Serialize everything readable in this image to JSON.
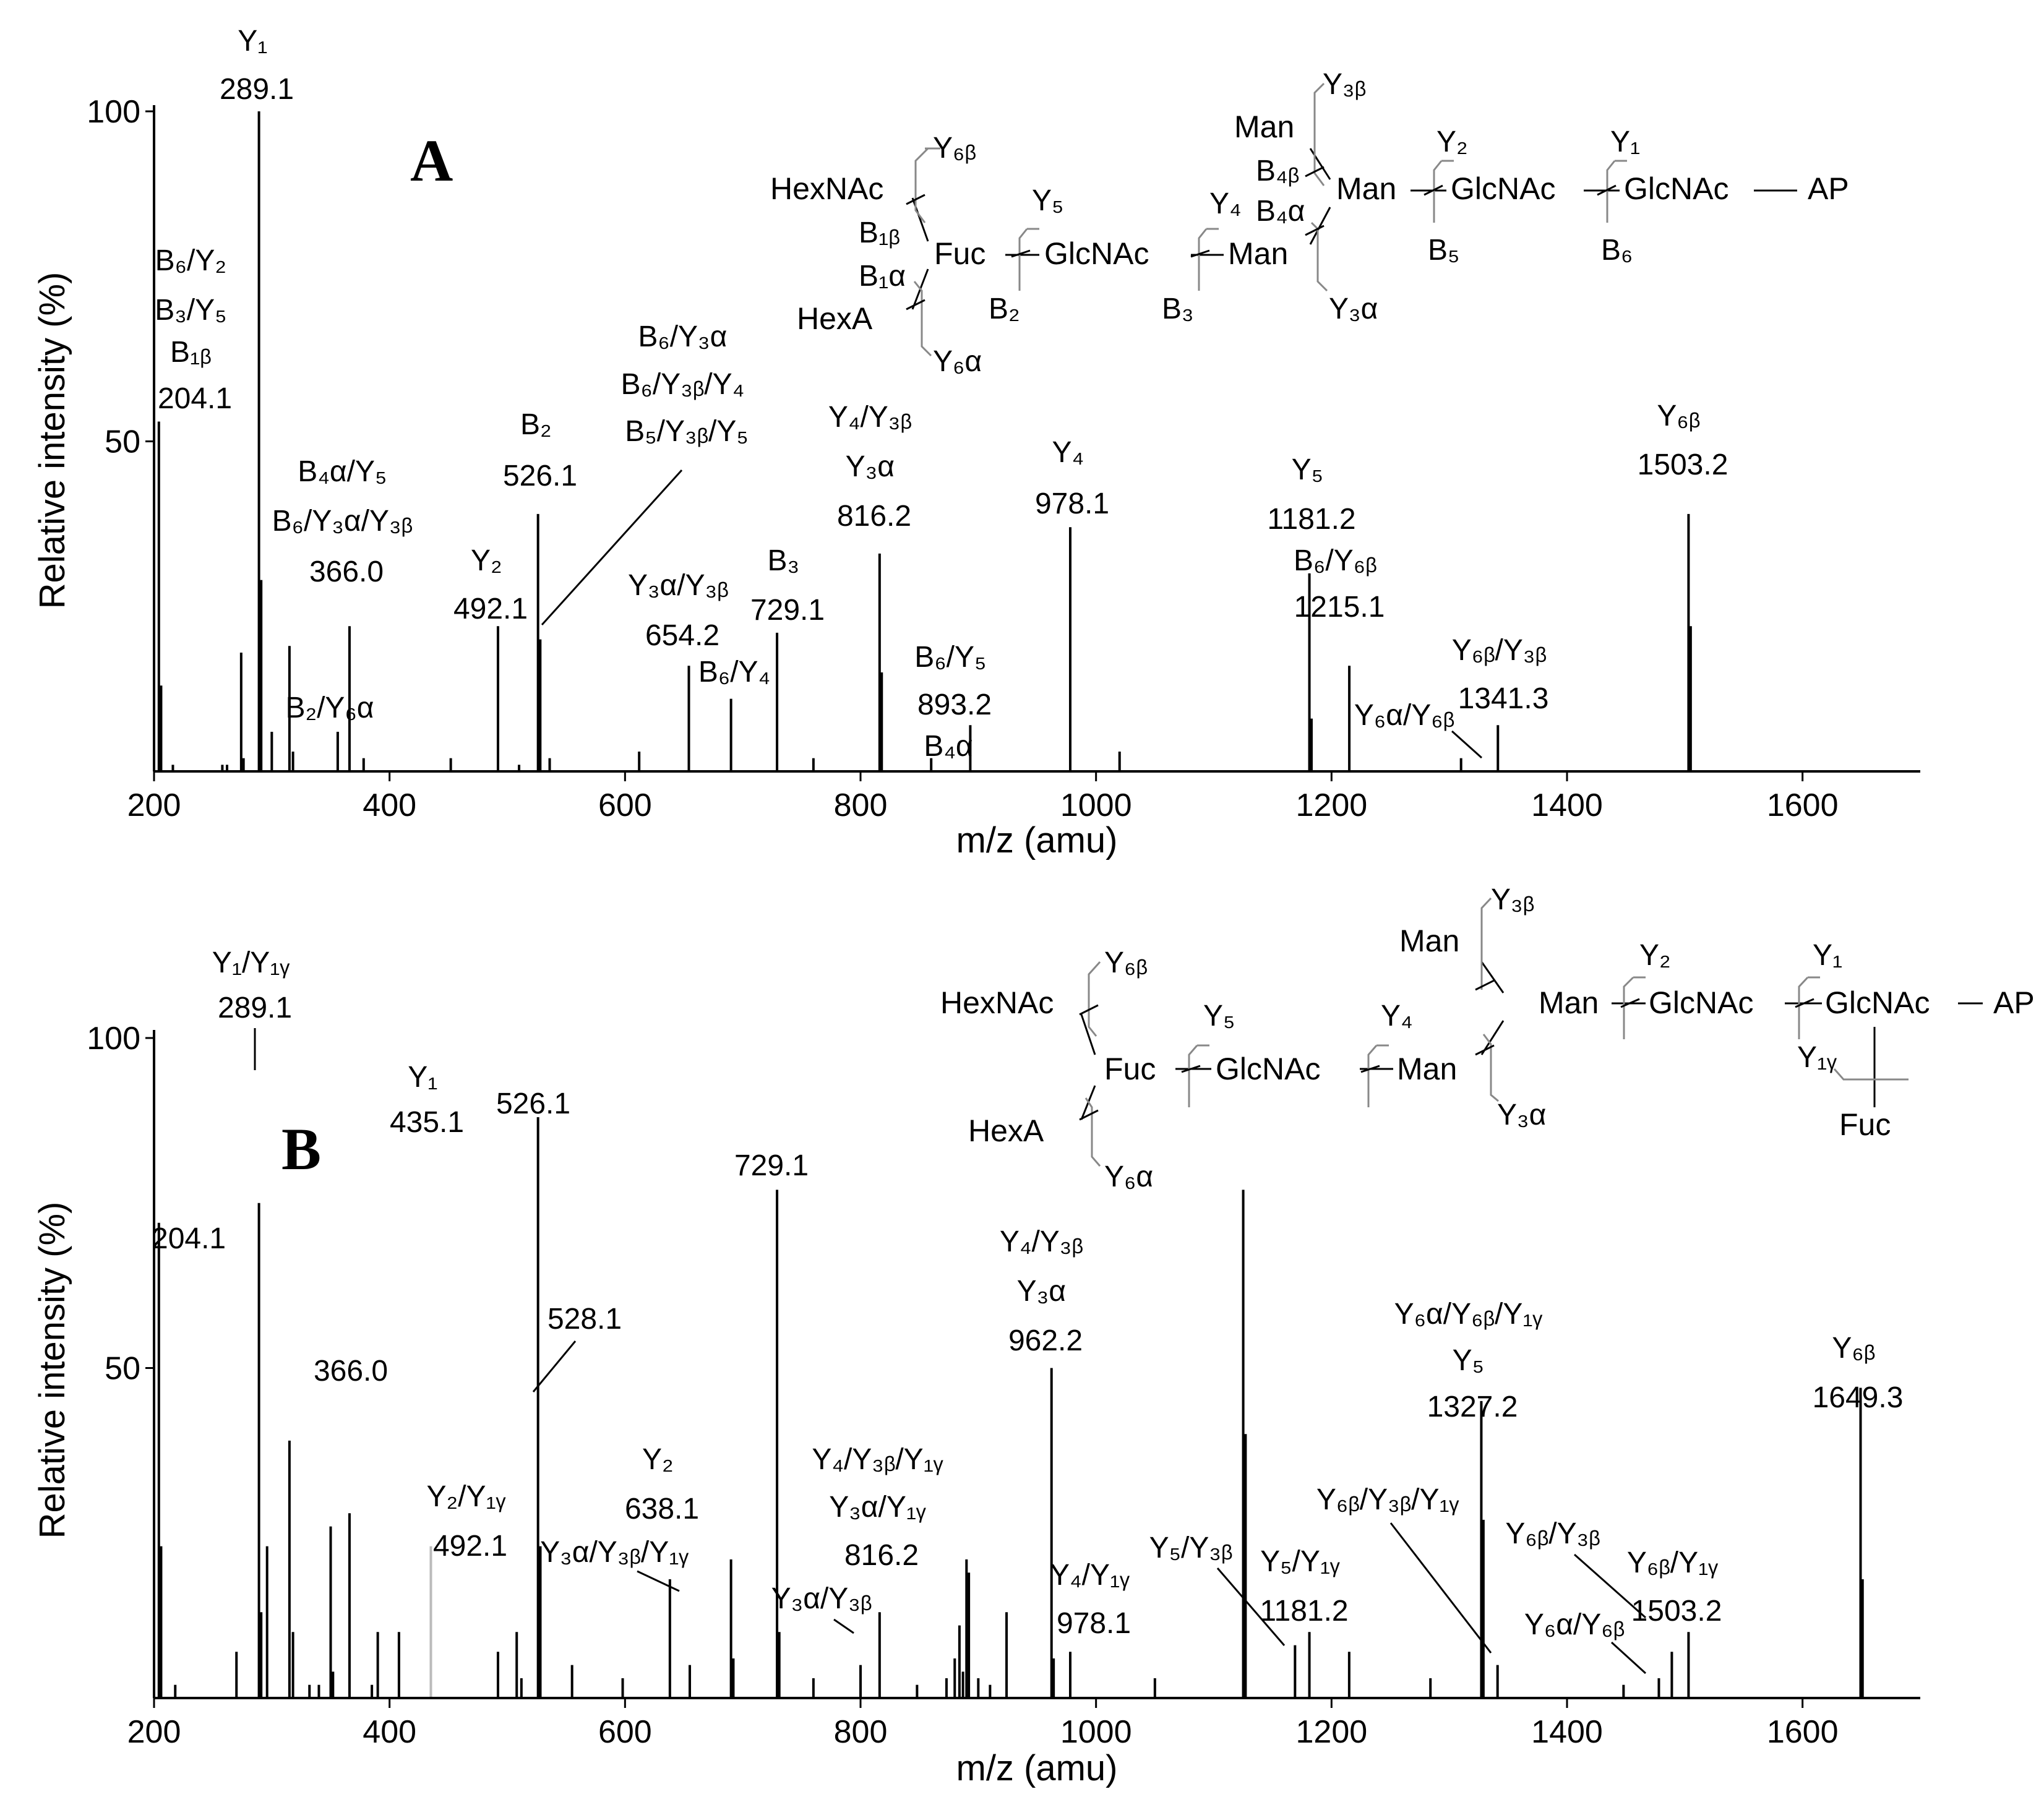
{
  "chart_data": [
    {
      "type": "bar",
      "panel_label": "A",
      "title": "",
      "xlabel": "m/z (amu)",
      "ylabel": "Relative intensity (%)",
      "xlim": [
        200,
        1700
      ],
      "ylim": [
        0,
        100
      ],
      "xticks": [
        200,
        400,
        600,
        800,
        1000,
        1200,
        1400,
        1600
      ],
      "yticks": [
        50,
        100
      ],
      "peaks": [
        {
          "mz": 204.1,
          "intensity": 53
        },
        {
          "mz": 206,
          "intensity": 13
        },
        {
          "mz": 216,
          "intensity": 1
        },
        {
          "mz": 258,
          "intensity": 1
        },
        {
          "mz": 262,
          "intensity": 1
        },
        {
          "mz": 274,
          "intensity": 18
        },
        {
          "mz": 276,
          "intensity": 2
        },
        {
          "mz": 289.1,
          "intensity": 100
        },
        {
          "mz": 291,
          "intensity": 29
        },
        {
          "mz": 300,
          "intensity": 6
        },
        {
          "mz": 315,
          "intensity": 19
        },
        {
          "mz": 318,
          "intensity": 3
        },
        {
          "mz": 356,
          "intensity": 6
        },
        {
          "mz": 366.0,
          "intensity": 22
        },
        {
          "mz": 378,
          "intensity": 2
        },
        {
          "mz": 452,
          "intensity": 2
        },
        {
          "mz": 492.1,
          "intensity": 22
        },
        {
          "mz": 510,
          "intensity": 1
        },
        {
          "mz": 526.1,
          "intensity": 39
        },
        {
          "mz": 528,
          "intensity": 20
        },
        {
          "mz": 536,
          "intensity": 2
        },
        {
          "mz": 612,
          "intensity": 3
        },
        {
          "mz": 654.2,
          "intensity": 16
        },
        {
          "mz": 690,
          "intensity": 11
        },
        {
          "mz": 729.1,
          "intensity": 21
        },
        {
          "mz": 760,
          "intensity": 2
        },
        {
          "mz": 816.2,
          "intensity": 33
        },
        {
          "mz": 818,
          "intensity": 15
        },
        {
          "mz": 860,
          "intensity": 2
        },
        {
          "mz": 893.2,
          "intensity": 7
        },
        {
          "mz": 978.1,
          "intensity": 37
        },
        {
          "mz": 1020,
          "intensity": 3
        },
        {
          "mz": 1181.2,
          "intensity": 30
        },
        {
          "mz": 1183,
          "intensity": 8
        },
        {
          "mz": 1215.1,
          "intensity": 16
        },
        {
          "mz": 1310,
          "intensity": 2
        },
        {
          "mz": 1341.3,
          "intensity": 7
        },
        {
          "mz": 1503.2,
          "intensity": 39
        },
        {
          "mz": 1505,
          "intensity": 22
        }
      ],
      "annotations": [
        {
          "id": "y1",
          "lines": [
            "Y₁",
            "289.1"
          ]
        },
        {
          "id": "b6y2",
          "lines": [
            "B₆/Y₂",
            "B₃/Y₅",
            "B₁ᵦ",
            "204.1"
          ]
        },
        {
          "id": "b4a",
          "lines": [
            "B₄α/Y₅",
            "B₆/Y₃α/Y₃ᵦ",
            "366.0"
          ]
        },
        {
          "id": "b2y6a",
          "lines": [
            "B₂/Y₆α"
          ]
        },
        {
          "id": "y2",
          "lines": [
            "Y₂",
            "492.1"
          ]
        },
        {
          "id": "b2",
          "lines": [
            "B₂",
            "526.1"
          ]
        },
        {
          "id": "b6y3a",
          "lines": [
            "B₆/Y₃α",
            "B₆/Y₃ᵦ/Y₄",
            "B₅/Y₃ᵦ/Y₅"
          ]
        },
        {
          "id": "y3ay3b",
          "lines": [
            "Y₃α/Y₃ᵦ",
            "654.2"
          ]
        },
        {
          "id": "b6y4",
          "lines": [
            "B₆/Y₄"
          ]
        },
        {
          "id": "b3",
          "lines": [
            "B₃",
            "729.1"
          ]
        },
        {
          "id": "y4y3b",
          "lines": [
            "Y₄/Y₃ᵦ",
            "Y₃α",
            "816.2"
          ]
        },
        {
          "id": "b6y5",
          "lines": [
            "B₆/Y₅",
            "893.2"
          ]
        },
        {
          "id": "b4a2",
          "lines": [
            "B₄α"
          ]
        },
        {
          "id": "y4",
          "lines": [
            "Y₄",
            "978.1"
          ]
        },
        {
          "id": "y5",
          "lines": [
            "Y₅",
            "1181.2"
          ]
        },
        {
          "id": "b6y6b",
          "lines": [
            "B₆/Y₆ᵦ",
            "1215.1"
          ]
        },
        {
          "id": "y6by3b",
          "lines": [
            "Y₆ᵦ/Y₃ᵦ",
            "1341.3"
          ]
        },
        {
          "id": "y6ay6b",
          "lines": [
            "Y₆α/Y₆ᵦ"
          ]
        },
        {
          "id": "y6b",
          "lines": [
            "Y₆ᵦ",
            "1503.2"
          ]
        }
      ],
      "structure_labels": {
        "hexnac": "HexNAc",
        "hexa": "HexA",
        "fuc": "Fuc",
        "glcnac_mid": "GlcNAc",
        "man_mid": "Man",
        "man_top": "Man",
        "man_right": "Man",
        "glcnac_a": "GlcNAc",
        "glcnac_b": "GlcNAc",
        "ap": "AP",
        "y6b": "Y₆ᵦ",
        "b1b": "B₁ᵦ",
        "b1a": "B₁α",
        "y6a": "Y₆α",
        "y5": "Y₅",
        "b2": "B₂",
        "y4": "Y₄",
        "b3": "B₃",
        "b4b": "B₄ᵦ",
        "b4a": "B₄α",
        "y3b": "Y₃ᵦ",
        "y3a": "Y₃α",
        "y2": "Y₂",
        "b5": "B₅",
        "y1": "Y₁",
        "b6": "B₆"
      }
    },
    {
      "type": "bar",
      "panel_label": "B",
      "title": "",
      "xlabel": "m/z (amu)",
      "ylabel": "Relative intensity (%)",
      "xlim": [
        200,
        1700
      ],
      "ylim": [
        0,
        100
      ],
      "xticks": [
        200,
        400,
        600,
        800,
        1000,
        1200,
        1400,
        1600
      ],
      "yticks": [
        50,
        100
      ],
      "peaks": [
        {
          "mz": 204.1,
          "intensity": 72
        },
        {
          "mz": 206,
          "intensity": 23
        },
        {
          "mz": 218,
          "intensity": 2
        },
        {
          "mz": 270,
          "intensity": 7
        },
        {
          "mz": 289.1,
          "intensity": 75
        },
        {
          "mz": 291,
          "intensity": 13
        },
        {
          "mz": 296,
          "intensity": 23
        },
        {
          "mz": 315,
          "intensity": 39
        },
        {
          "mz": 318,
          "intensity": 10
        },
        {
          "mz": 332,
          "intensity": 2
        },
        {
          "mz": 340,
          "intensity": 2
        },
        {
          "mz": 350,
          "intensity": 26
        },
        {
          "mz": 352,
          "intensity": 4
        },
        {
          "mz": 366.0,
          "intensity": 28
        },
        {
          "mz": 385,
          "intensity": 2
        },
        {
          "mz": 390,
          "intensity": 10
        },
        {
          "mz": 408,
          "intensity": 10
        },
        {
          "mz": 435.1,
          "intensity": 23
        },
        {
          "mz": 492.1,
          "intensity": 7
        },
        {
          "mz": 508,
          "intensity": 10
        },
        {
          "mz": 512,
          "intensity": 3
        },
        {
          "mz": 526.1,
          "intensity": 88
        },
        {
          "mz": 528.1,
          "intensity": 23
        },
        {
          "mz": 555,
          "intensity": 5
        },
        {
          "mz": 598,
          "intensity": 3
        },
        {
          "mz": 638.1,
          "intensity": 18
        },
        {
          "mz": 655,
          "intensity": 5
        },
        {
          "mz": 690,
          "intensity": 21
        },
        {
          "mz": 692,
          "intensity": 6
        },
        {
          "mz": 729.1,
          "intensity": 77
        },
        {
          "mz": 731,
          "intensity": 10
        },
        {
          "mz": 760,
          "intensity": 3
        },
        {
          "mz": 800,
          "intensity": 5
        },
        {
          "mz": 816.2,
          "intensity": 13
        },
        {
          "mz": 848,
          "intensity": 2
        },
        {
          "mz": 873,
          "intensity": 3
        },
        {
          "mz": 880,
          "intensity": 6
        },
        {
          "mz": 884,
          "intensity": 11
        },
        {
          "mz": 887,
          "intensity": 4
        },
        {
          "mz": 890,
          "intensity": 21
        },
        {
          "mz": 892,
          "intensity": 19
        },
        {
          "mz": 900,
          "intensity": 3
        },
        {
          "mz": 910,
          "intensity": 2
        },
        {
          "mz": 924,
          "intensity": 13
        },
        {
          "mz": 962.2,
          "intensity": 50
        },
        {
          "mz": 964,
          "intensity": 6
        },
        {
          "mz": 978.1,
          "intensity": 7
        },
        {
          "mz": 1050,
          "intensity": 3
        },
        {
          "mz": 1125,
          "intensity": 77
        },
        {
          "mz": 1127,
          "intensity": 40
        },
        {
          "mz": 1169,
          "intensity": 8
        },
        {
          "mz": 1181.2,
          "intensity": 10
        },
        {
          "mz": 1215,
          "intensity": 7
        },
        {
          "mz": 1284,
          "intensity": 3
        },
        {
          "mz": 1327.2,
          "intensity": 45
        },
        {
          "mz": 1329,
          "intensity": 27
        },
        {
          "mz": 1341,
          "intensity": 5
        },
        {
          "mz": 1448,
          "intensity": 2
        },
        {
          "mz": 1478,
          "intensity": 3
        },
        {
          "mz": 1489,
          "intensity": 7
        },
        {
          "mz": 1503.2,
          "intensity": 10
        },
        {
          "mz": 1649.3,
          "intensity": 47
        },
        {
          "mz": 1651,
          "intensity": 18
        }
      ],
      "annotations": [
        {
          "id": "y1y1g",
          "lines": [
            "Y₁/Y₁ᵧ",
            "289.1"
          ]
        },
        {
          "id": "p204",
          "lines": [
            "204.1"
          ]
        },
        {
          "id": "y1b",
          "lines": [
            "Y₁",
            "435.1"
          ]
        },
        {
          "id": "p526",
          "lines": [
            "526.1"
          ]
        },
        {
          "id": "p729",
          "lines": [
            "729.1"
          ]
        },
        {
          "id": "p366",
          "lines": [
            "366.0"
          ]
        },
        {
          "id": "p528",
          "lines": [
            "528.1"
          ]
        },
        {
          "id": "y2y1g",
          "lines": [
            "Y₂/Y₁ᵧ",
            "492.1"
          ]
        },
        {
          "id": "y3ay3by1g",
          "lines": [
            "Y₃α/Y₃ᵦ/Y₁ᵧ"
          ]
        },
        {
          "id": "y2b",
          "lines": [
            "Y₂",
            "638.1"
          ]
        },
        {
          "id": "y4y3by1g",
          "lines": [
            "Y₄/Y₃ᵦ/Y₁ᵧ",
            "Y₃α/Y₁ᵧ",
            "816.2"
          ]
        },
        {
          "id": "y3ay3b",
          "lines": [
            "Y₃α/Y₃ᵦ"
          ]
        },
        {
          "id": "y4y3b",
          "lines": [
            "Y₄/Y₃ᵦ",
            "Y₃α",
            "962.2"
          ]
        },
        {
          "id": "y4y1g",
          "lines": [
            "Y₄/Y₁ᵧ",
            "978.1"
          ]
        },
        {
          "id": "y5y3b",
          "lines": [
            "Y₅/Y₃ᵦ"
          ]
        },
        {
          "id": "y5y1g",
          "lines": [
            "Y₅/Y₁ᵧ",
            "1181.2"
          ]
        },
        {
          "id": "y6by3by1g",
          "lines": [
            "Y₆ᵦ/Y₃ᵦ/Y₁ᵧ"
          ]
        },
        {
          "id": "y6a6b1g",
          "lines": [
            "Y₆α/Y₆ᵦ/Y₁ᵧ",
            "Y₅",
            "1327.2"
          ]
        },
        {
          "id": "y6by3b",
          "lines": [
            "Y₆ᵦ/Y₃ᵦ"
          ]
        },
        {
          "id": "y6ay6b",
          "lines": [
            "Y₆α/Y₆ᵦ"
          ]
        },
        {
          "id": "y6by1g",
          "lines": [
            "Y₆ᵦ/Y₁ᵧ",
            "1503.2"
          ]
        },
        {
          "id": "y6b",
          "lines": [
            "Y₆ᵦ",
            "1649.3"
          ]
        }
      ],
      "structure_labels": {
        "hexnac": "HexNAc",
        "hexa": "HexA",
        "fuc": "Fuc",
        "glcnac_mid": "GlcNAc",
        "man_mid": "Man",
        "man_top": "Man",
        "man_right": "Man",
        "glcnac_a": "GlcNAc",
        "glcnac_b": "GlcNAc",
        "ap": "AP",
        "fuc_core": "Fuc",
        "y6b": "Y₆ᵦ",
        "y6a": "Y₆α",
        "y5": "Y₅",
        "y4": "Y₄",
        "y3b": "Y₃ᵦ",
        "y3a": "Y₃α",
        "y2": "Y₂",
        "y1": "Y₁",
        "y1g": "Y₁ᵧ"
      }
    }
  ]
}
